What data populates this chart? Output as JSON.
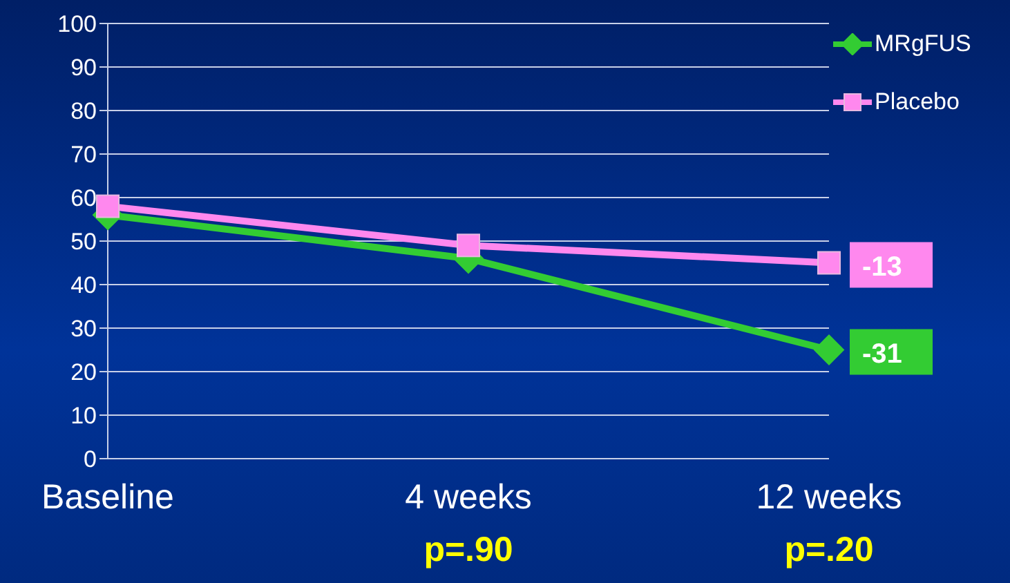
{
  "chart_data": {
    "type": "line",
    "categories": [
      "Baseline",
      "4 weeks",
      "12 weeks"
    ],
    "series": [
      {
        "name": "MRgFUS",
        "color": "#33cc33",
        "values": [
          56,
          46,
          25
        ],
        "marker": "diamond"
      },
      {
        "name": "Placebo",
        "color": "#ff88ee",
        "values": [
          58,
          49,
          45
        ],
        "marker": "square"
      }
    ],
    "ylim": [
      0,
      100
    ],
    "yticks": [
      0,
      10,
      20,
      30,
      40,
      50,
      60,
      70,
      80,
      90,
      100
    ],
    "grid": "y",
    "legend": "top right",
    "annotations": [
      {
        "text": "-13",
        "x": "12 weeks",
        "y": 45
      },
      {
        "text": "-31",
        "x": "12 weeks",
        "y": 25
      },
      "p=.90",
      "p=.20"
    ]
  }
}
